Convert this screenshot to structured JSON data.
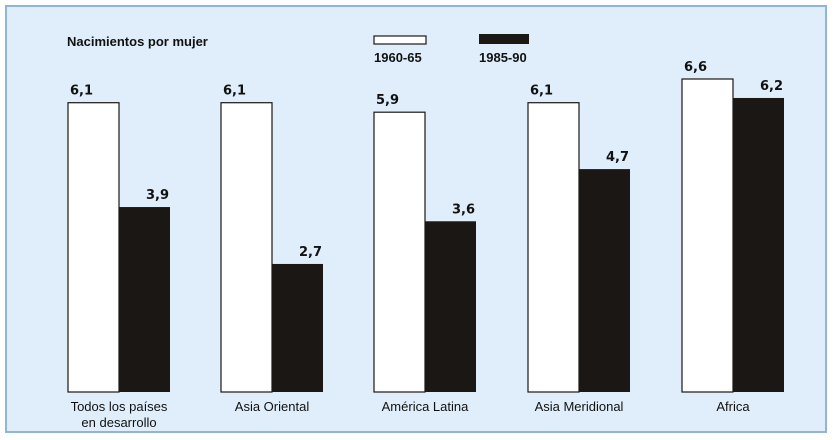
{
  "chart_data": {
    "type": "bar",
    "title": "Nacimientos por mujer",
    "categories": [
      [
        "Todos los países",
        "en desarrollo"
      ],
      [
        "Asia Oriental"
      ],
      [
        "América Latina"
      ],
      [
        "Asia Meridional"
      ],
      [
        "Africa"
      ]
    ],
    "series": [
      {
        "name": "1960-65",
        "values": [
          6.1,
          6.1,
          5.9,
          6.1,
          6.6
        ],
        "labels": [
          "6,1",
          "6,1",
          "5,9",
          "6,1",
          "6,6"
        ]
      },
      {
        "name": "1985-90",
        "values": [
          3.9,
          2.7,
          3.6,
          4.7,
          6.2
        ],
        "labels": [
          "3,9",
          "2,7",
          "3,6",
          "4,7",
          "6,2"
        ]
      }
    ],
    "ylim": [
      0,
      6.6
    ],
    "grid": false,
    "legend_position": "top-center",
    "colors": {
      "background": "#dfeefa",
      "border": "#8fb5db",
      "series1": "#ffffff",
      "series2": "#1b1714",
      "outline": "#1b1714"
    }
  }
}
